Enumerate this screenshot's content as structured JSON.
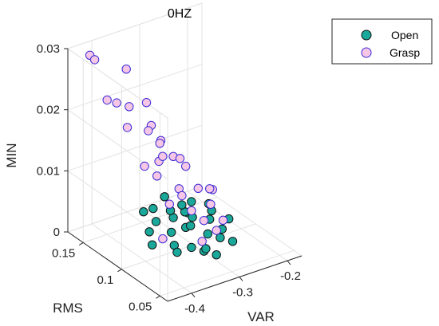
{
  "chart_data": {
    "type": "scatter",
    "title": "0HZ",
    "xlabel": "VAR",
    "ylabel": "RMS",
    "zlabel": "MIN",
    "x_ticks": [
      "-0.4",
      "-0.3",
      "-0.2"
    ],
    "y_ticks": [
      "0.05",
      "0.1",
      "0.15"
    ],
    "z_ticks": [
      "0",
      "0.01",
      "0.02",
      "0.03"
    ],
    "xlim": [
      -0.45,
      -0.17
    ],
    "ylim": [
      0.04,
      0.17
    ],
    "zlim": [
      0,
      0.03
    ],
    "grid": true,
    "legend_position": "top-right",
    "series": [
      {
        "name": "Open",
        "color": "#1aa89a",
        "points": [
          [
            -0.28,
            0.12,
            0.003
          ],
          [
            -0.3,
            0.11,
            0.002
          ],
          [
            -0.27,
            0.1,
            0.001
          ],
          [
            -0.26,
            0.09,
            0.001
          ],
          [
            -0.33,
            0.13,
            0.002
          ],
          [
            -0.31,
            0.08,
            0.001
          ],
          [
            -0.34,
            0.1,
            0.001
          ],
          [
            -0.25,
            0.11,
            0.002
          ],
          [
            -0.29,
            0.09,
            0.0
          ],
          [
            -0.36,
            0.12,
            0.002
          ],
          [
            -0.32,
            0.14,
            0.003
          ],
          [
            -0.27,
            0.13,
            0.002
          ],
          [
            -0.24,
            0.1,
            0.001
          ],
          [
            -0.3,
            0.07,
            0.001
          ],
          [
            -0.35,
            0.09,
            0.001
          ],
          [
            -0.28,
            0.15,
            0.003
          ],
          [
            -0.23,
            0.12,
            0.002
          ],
          [
            -0.31,
            0.12,
            0.003
          ],
          [
            -0.26,
            0.14,
            0.002
          ],
          [
            -0.33,
            0.11,
            0.002
          ],
          [
            -0.29,
            0.11,
            0.002
          ],
          [
            -0.22,
            0.13,
            0.002
          ],
          [
            -0.37,
            0.11,
            0.001
          ],
          [
            -0.25,
            0.08,
            0.001
          ],
          [
            -0.3,
            0.13,
            0.003
          ],
          [
            -0.27,
            0.12,
            0.002
          ],
          [
            -0.34,
            0.14,
            0.003
          ],
          [
            -0.24,
            0.14,
            0.002
          ],
          [
            -0.32,
            0.09,
            0.001
          ],
          [
            -0.21,
            0.11,
            0.001
          ]
        ]
      },
      {
        "name": "Grasp",
        "color": "#f5c6e6",
        "edge": "#3a2bd6",
        "points": [
          [
            -0.42,
            0.16,
            0.029
          ],
          [
            -0.41,
            0.16,
            0.028
          ],
          [
            -0.4,
            0.15,
            0.022
          ],
          [
            -0.38,
            0.15,
            0.021
          ],
          [
            -0.36,
            0.15,
            0.026
          ],
          [
            -0.37,
            0.14,
            0.021
          ],
          [
            -0.39,
            0.13,
            0.019
          ],
          [
            -0.35,
            0.13,
            0.022
          ],
          [
            -0.34,
            0.13,
            0.018
          ],
          [
            -0.33,
            0.14,
            0.016
          ],
          [
            -0.32,
            0.13,
            0.015
          ],
          [
            -0.37,
            0.12,
            0.013
          ],
          [
            -0.36,
            0.11,
            0.012
          ],
          [
            -0.34,
            0.12,
            0.013
          ],
          [
            -0.33,
            0.1,
            0.01
          ],
          [
            -0.31,
            0.12,
            0.013
          ],
          [
            -0.3,
            0.11,
            0.012
          ],
          [
            -0.35,
            0.1,
            0.008
          ],
          [
            -0.32,
            0.09,
            0.007
          ],
          [
            -0.29,
            0.1,
            0.009
          ],
          [
            -0.31,
            0.08,
            0.006
          ],
          [
            -0.28,
            0.09,
            0.007
          ],
          [
            -0.3,
            0.07,
            0.005
          ],
          [
            -0.27,
            0.08,
            0.005
          ],
          [
            -0.38,
            0.09,
            0.004
          ],
          [
            -0.33,
            0.07,
            0.004
          ],
          [
            -0.26,
            0.1,
            0.008
          ],
          [
            -0.28,
            0.13,
            0.011
          ],
          [
            -0.25,
            0.11,
            0.007
          ],
          [
            -0.29,
            0.15,
            0.012
          ],
          [
            -0.34,
            0.09,
            0.01
          ],
          [
            -0.3,
            0.14,
            0.011
          ]
        ]
      }
    ]
  }
}
